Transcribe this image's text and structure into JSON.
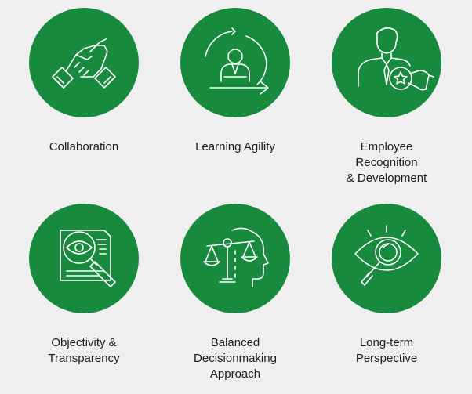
{
  "values": [
    {
      "label": "Collaboration",
      "icon": "handshake-icon"
    },
    {
      "label": "Learning Agility",
      "icon": "learning-cycle-icon"
    },
    {
      "label": "Employee\nRecognition\n& Development",
      "icon": "employee-award-icon"
    },
    {
      "label": "Objectivity &\nTransparency",
      "icon": "document-magnifier-icon"
    },
    {
      "label": "Balanced\nDecisionmaking\nApproach",
      "icon": "head-scales-icon"
    },
    {
      "label": "Long-term\nPerspective",
      "icon": "eye-magnifier-icon"
    }
  ],
  "colors": {
    "circle": "#178a3e",
    "icon_stroke": "#ffffff",
    "background": "#efefef",
    "text": "#1c1c1c"
  }
}
